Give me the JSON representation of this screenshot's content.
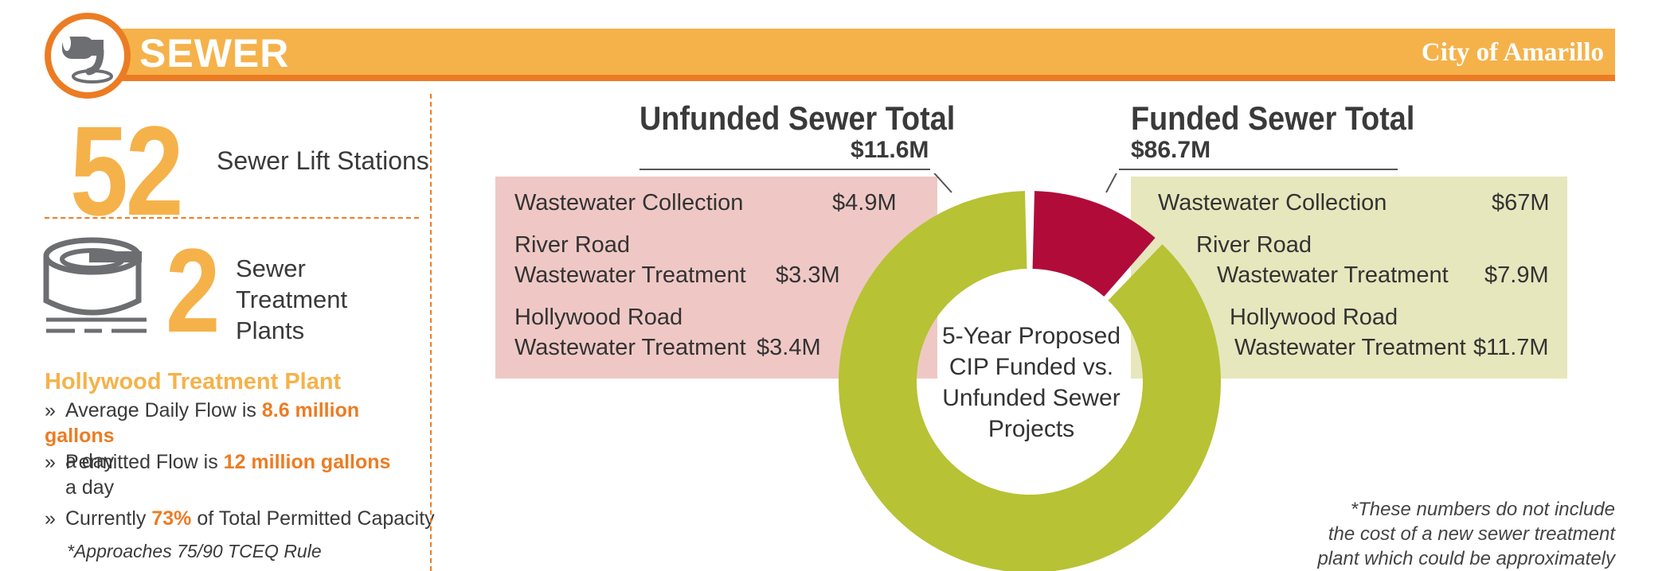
{
  "header": {
    "title": "SEWER",
    "city": "City of Amarillo"
  },
  "lift_stations": {
    "count": "52",
    "label": "Sewer Lift Stations"
  },
  "treatment_plants": {
    "count": "2",
    "label_line1": "Sewer Treatment",
    "label_line2": "Plants"
  },
  "hollywood": {
    "heading": "Hollywood Treatment Plant",
    "bullets": [
      {
        "pre": "Average Daily Flow is ",
        "highlight": "8.6 million gallons",
        "post": "a day"
      },
      {
        "pre": "Permitted Flow is ",
        "highlight": "12 million gallons",
        "post": "a day"
      },
      {
        "pre": "Currently ",
        "highlight": "73%",
        "post": " of Total Permitted Capacity"
      }
    ],
    "note": "*Approaches 75/90 TCEQ Rule"
  },
  "footnote": {
    "line1": "*These numbers do not include",
    "line2": "the cost of a new sewer treatment",
    "line3": "plant which could be approximately"
  },
  "colors": {
    "orange": "#ec7c23",
    "yellow": "#f5b24a",
    "funded": "#b7c234",
    "unfunded": "#b10b3a"
  },
  "icons": {
    "logo": "sewer-pipe-icon",
    "plant": "treatment-tank-icon"
  },
  "chart_data": {
    "type": "pie",
    "title": "",
    "center_label": [
      "5-Year Proposed",
      "CIP Funded vs.",
      "Unfunded Sewer",
      "Projects"
    ],
    "categories": [
      "Unfunded Sewer Total",
      "Funded Sewer Total"
    ],
    "values": [
      11.6,
      86.7
    ],
    "value_labels": [
      "$11.6M",
      "$86.7M"
    ],
    "unit": "$M",
    "breakdown": {
      "unfunded": [
        {
          "name_line1": "Wastewater Collection",
          "name_line2": "",
          "value": "$4.9M"
        },
        {
          "name_line1": "River Road",
          "name_line2": "Wastewater Treatment",
          "value": "$3.3M"
        },
        {
          "name_line1": "Hollywood Road",
          "name_line2": "Wastewater Treatment",
          "value": "$3.4M"
        }
      ],
      "funded": [
        {
          "name_line1": "Wastewater Collection",
          "name_line2": "",
          "value": "$67M"
        },
        {
          "name_line1": "River Road",
          "name_line2": "Wastewater Treatment",
          "value": "$7.9M"
        },
        {
          "name_line1": "Hollywood Road",
          "name_line2": "Wastewater Treatment",
          "value": "$11.7M"
        }
      ]
    }
  }
}
